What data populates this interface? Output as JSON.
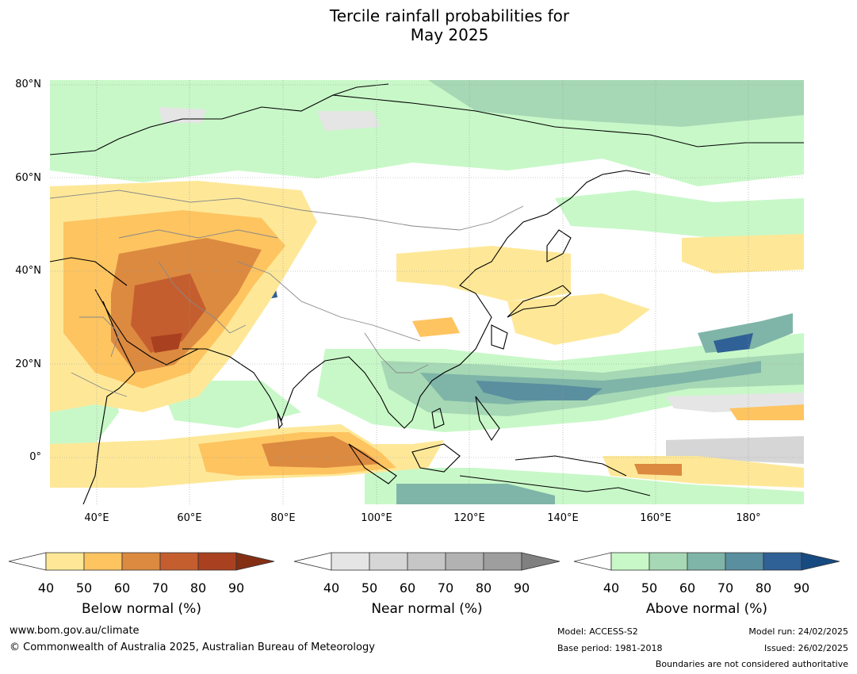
{
  "title_line1": "Tercile rainfall probabilities for",
  "title_line2": "May 2025",
  "map": {
    "lat_labels": [
      "80°N",
      "60°N",
      "40°N",
      "20°N",
      "0°"
    ],
    "lon_labels": [
      "40°E",
      "60°E",
      "80°E",
      "100°E",
      "120°E",
      "140°E",
      "160°E",
      "180°"
    ],
    "extent": {
      "lon_min": 30,
      "lon_max": 192,
      "lat_min": -10,
      "lat_max": 81
    }
  },
  "legends": [
    {
      "id": "below",
      "title": "Below normal (%)",
      "ticks": [
        "40",
        "50",
        "60",
        "70",
        "80",
        "90"
      ],
      "colors": [
        "#ffffff",
        "#fee898",
        "#fec460",
        "#dc8a40",
        "#c55e2e",
        "#a94120",
        "#842f14"
      ]
    },
    {
      "id": "near",
      "title": "Near normal (%)",
      "ticks": [
        "40",
        "50",
        "60",
        "70",
        "80",
        "90"
      ],
      "colors": [
        "#ffffff",
        "#e5e5e5",
        "#d6d6d6",
        "#c6c6c6",
        "#b2b2b2",
        "#9e9e9e",
        "#808080"
      ]
    },
    {
      "id": "above",
      "title": "Above normal (%)",
      "ticks": [
        "40",
        "50",
        "60",
        "70",
        "80",
        "90"
      ],
      "colors": [
        "#ffffff",
        "#c8f8c8",
        "#a6d8b5",
        "#7fb5a8",
        "#5a8fa0",
        "#2f6096",
        "#174a80"
      ]
    }
  ],
  "footer": {
    "url": "www.bom.gov.au/climate",
    "copyright": "© Commonwealth of Australia 2025, Australian Bureau of Meteorology",
    "model": "Model: ACCESS-S2",
    "base_period": "Base period: 1981-2018",
    "model_run": "Model run: 24/02/2025",
    "issued": "Issued: 26/02/2025",
    "disclaimer": "Boundaries are not considered authoritative"
  }
}
